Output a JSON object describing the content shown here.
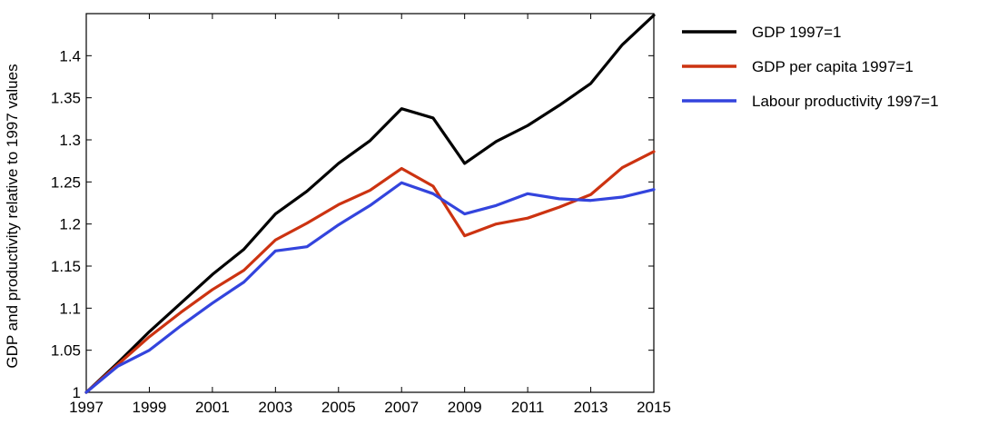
{
  "chart_data": {
    "type": "line",
    "title": "",
    "xlabel": "",
    "ylabel": "GDP and productivity relative to 1997 values",
    "x": [
      1997,
      1998,
      1999,
      2000,
      2001,
      2002,
      2003,
      2004,
      2005,
      2006,
      2007,
      2008,
      2009,
      2010,
      2011,
      2012,
      2013,
      2014,
      2015
    ],
    "xlim": [
      1997,
      2015
    ],
    "ylim": [
      1,
      1.45
    ],
    "x_ticks": [
      1997,
      1999,
      2001,
      2003,
      2005,
      2007,
      2009,
      2011,
      2013,
      2015
    ],
    "x_tick_labels": [
      "1997",
      "1999",
      "2001",
      "2003",
      "2005",
      "2007",
      "2009",
      "2011",
      "2013",
      "2015"
    ],
    "y_ticks": [
      1,
      1.05,
      1.1,
      1.15,
      1.2,
      1.25,
      1.3,
      1.35,
      1.4
    ],
    "y_tick_labels": [
      "1",
      "1.05",
      "1.1",
      "1.15",
      "1.2",
      "1.25",
      "1.3",
      "1.35",
      "1.4"
    ],
    "grid": false,
    "legend_position": "right, outside plot area",
    "series": [
      {
        "name": "GDP 1997=1",
        "color": "#000000",
        "values": [
          1.0,
          1.035,
          1.072,
          1.106,
          1.14,
          1.17,
          1.212,
          1.239,
          1.272,
          1.299,
          1.337,
          1.326,
          1.272,
          1.298,
          1.317,
          1.341,
          1.367,
          1.413,
          1.448
        ]
      },
      {
        "name": "GDP per capita 1997=1",
        "color": "#cc3311",
        "values": [
          1.0,
          1.033,
          1.066,
          1.095,
          1.122,
          1.145,
          1.181,
          1.201,
          1.223,
          1.24,
          1.266,
          1.245,
          1.186,
          1.2,
          1.207,
          1.22,
          1.235,
          1.267,
          1.286
        ]
      },
      {
        "name": "Labour productivity 1997=1",
        "color": "#3344dd",
        "values": [
          1.0,
          1.031,
          1.05,
          1.079,
          1.106,
          1.131,
          1.168,
          1.173,
          1.199,
          1.222,
          1.249,
          1.236,
          1.212,
          1.222,
          1.236,
          1.23,
          1.228,
          1.232,
          1.241
        ]
      }
    ]
  }
}
